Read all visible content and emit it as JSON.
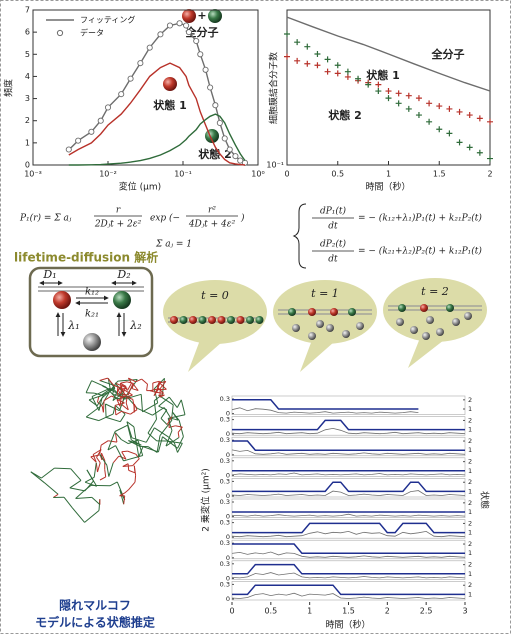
{
  "chart_data": [
    {
      "type": "line",
      "x_scale": "log",
      "xlabel": "変位 (μm)",
      "ylabel": "頻度",
      "xlim": [
        0.001,
        1
      ],
      "xticks": [
        {
          "value": 0.001,
          "label": "10⁻³"
        },
        {
          "value": 0.01,
          "label": "10⁻²"
        },
        {
          "value": 0.1,
          "label": "10⁻¹"
        },
        {
          "value": 1,
          "label": "10⁰"
        }
      ],
      "ylim": [
        0,
        7
      ],
      "yticks": [
        0,
        1,
        2,
        3,
        4,
        5,
        6,
        7
      ],
      "annotations": {
        "total": "全分子",
        "plus": "+"
      },
      "x": [
        0.003,
        0.004,
        0.006,
        0.008,
        0.01,
        0.015,
        0.02,
        0.027,
        0.036,
        0.05,
        0.067,
        0.09,
        0.11,
        0.12,
        0.15,
        0.17,
        0.2,
        0.23,
        0.27,
        0.31,
        0.36,
        0.42,
        0.5,
        0.58,
        0.67
      ],
      "series": [
        {
          "name": "フィッティング",
          "color": "#6d6d6d",
          "marker": "none",
          "values": [
            0.68,
            1.1,
            1.5,
            2.0,
            2.6,
            3.2,
            3.9,
            4.6,
            5.3,
            5.9,
            6.3,
            6.4,
            6.3,
            6.0,
            5.6,
            5.0,
            4.3,
            3.5,
            2.7,
            1.9,
            1.2,
            0.7,
            0.4,
            0.2,
            0.1
          ]
        },
        {
          "name": "データ",
          "color": "#6d6d6d",
          "marker": "circle",
          "values": [
            0.7,
            1.1,
            1.5,
            2.0,
            2.6,
            3.2,
            3.9,
            4.6,
            5.3,
            5.9,
            6.3,
            6.4,
            6.3,
            6.0,
            5.6,
            5.0,
            4.3,
            3.5,
            2.7,
            1.9,
            1.2,
            0.7,
            0.4,
            0.2,
            0.1
          ]
        },
        {
          "name": "状態 1",
          "color": "#b8322a",
          "marker": "none",
          "values": [
            0.45,
            0.7,
            1.0,
            1.4,
            1.8,
            2.3,
            2.8,
            3.4,
            4.0,
            4.4,
            4.6,
            4.4,
            4.0,
            3.6,
            3.0,
            2.4,
            1.8,
            1.3,
            0.8,
            0.5,
            0.25,
            0.1,
            0.05,
            0.02,
            0
          ]
        },
        {
          "name": "状態 2",
          "color": "#2f6b3a",
          "marker": "none",
          "values": [
            0.0,
            0.0,
            0.01,
            0.02,
            0.04,
            0.08,
            0.13,
            0.2,
            0.3,
            0.45,
            0.65,
            0.9,
            1.15,
            1.3,
            1.6,
            1.85,
            2.05,
            2.2,
            2.3,
            2.2,
            1.9,
            1.4,
            0.9,
            0.5,
            0.2
          ]
        }
      ]
    },
    {
      "type": "scatter",
      "y_scale": "log",
      "xlabel": "時間（秒）",
      "ylabel": "細胞膜結合分子数",
      "xlim": [
        0,
        2
      ],
      "xticks": [
        0,
        0.5,
        1,
        1.5,
        2
      ],
      "ylim": [
        0.1,
        1
      ],
      "yticks": [
        {
          "value": 0.1,
          "label": "10⁻¹"
        }
      ],
      "x": [
        0,
        0.1,
        0.2,
        0.3,
        0.4,
        0.5,
        0.6,
        0.7,
        0.8,
        0.9,
        1,
        1.1,
        1.2,
        1.3,
        1.4,
        1.5,
        1.6,
        1.7,
        1.8,
        1.9,
        2
      ],
      "series": [
        {
          "name": "全分子",
          "color": "#6d6d6d",
          "marker": "none",
          "x": [
            0,
            0.25,
            0.5,
            0.75,
            1,
            1.25,
            1.5,
            1.75,
            2
          ],
          "values": [
            0.9,
            0.78,
            0.68,
            0.6,
            0.52,
            0.45,
            0.39,
            0.34,
            0.3
          ]
        },
        {
          "name": "状態 1",
          "color": "#b8322a",
          "marker": "cross",
          "values": [
            0.5,
            0.47,
            0.45,
            0.44,
            0.4,
            0.39,
            0.37,
            0.35,
            0.34,
            0.33,
            0.3,
            0.29,
            0.28,
            0.27,
            0.25,
            0.24,
            0.23,
            0.22,
            0.21,
            0.2,
            0.19
          ]
        },
        {
          "name": "状態 2",
          "color": "#2f6b3a",
          "marker": "cross",
          "values": [
            0.7,
            0.62,
            0.58,
            0.52,
            0.48,
            0.44,
            0.4,
            0.36,
            0.33,
            0.3,
            0.27,
            0.25,
            0.23,
            0.21,
            0.19,
            0.17,
            0.16,
            0.14,
            0.13,
            0.12,
            0.11
          ]
        }
      ]
    },
    {
      "type": "trace",
      "xlabel": "時間（秒）",
      "ylabel": "2 乗変位 (μm²)",
      "y2label": "状態",
      "xlim": [
        0,
        3
      ],
      "xticks": [
        0,
        0.5,
        1,
        1.5,
        2,
        2.5,
        3
      ],
      "ylim": [
        0,
        0.3
      ],
      "yticks": [
        0,
        0.3
      ],
      "y2lim": [
        0.5,
        2.2
      ],
      "y2ticks": [
        1,
        2
      ],
      "displacement_color": "#707070",
      "state_color": "#1f2f8f",
      "x": [
        0,
        0.1,
        0.2,
        0.3,
        0.4,
        0.5,
        0.6,
        0.7,
        0.8,
        0.9,
        1,
        1.1,
        1.2,
        1.3,
        1.4,
        1.5,
        1.6,
        1.7,
        1.8,
        1.9,
        2,
        2.1,
        2.2,
        2.3,
        2.4,
        2.5,
        2.6,
        2.7,
        2.8,
        2.9,
        3
      ],
      "panels": [
        {
          "displacement": [
            0.08,
            0.12,
            0.06,
            0.1,
            0.09,
            0.07,
            0.02,
            0.01,
            0.03,
            0.02,
            0.01,
            0.02,
            0.04,
            0.01,
            0.02,
            0.03,
            0.01,
            0.02,
            0.01,
            0.03,
            0.02,
            0.01,
            0.02,
            0.04,
            0.02,
            null,
            null,
            null,
            null,
            null,
            null
          ],
          "state": [
            2,
            2,
            2,
            2,
            2,
            2,
            1,
            1,
            1,
            1,
            1,
            1,
            1,
            1,
            1,
            1,
            1,
            1,
            1,
            1,
            1,
            1,
            1,
            1,
            1,
            null,
            null,
            null,
            null,
            null,
            null
          ]
        },
        {
          "displacement": [
            0.02,
            0.01,
            0.03,
            0.02,
            0.01,
            0.02,
            0.04,
            0.01,
            0.02,
            0.03,
            0.01,
            0.02,
            0.09,
            0.12,
            0.08,
            0.02,
            0.01,
            0.03,
            0.02,
            0.01,
            0.02,
            0.04,
            0.01,
            0.02,
            0.03,
            0.01,
            0.02,
            0.01,
            0.03,
            0.02,
            0.01
          ],
          "state": [
            1,
            1,
            1,
            1,
            1,
            1,
            1,
            1,
            1,
            1,
            1,
            1,
            2,
            2,
            2,
            1,
            1,
            1,
            1,
            1,
            1,
            1,
            1,
            1,
            1,
            1,
            1,
            1,
            1,
            1,
            1
          ]
        },
        {
          "displacement": [
            0.1,
            0.07,
            0.09,
            0.02,
            0.01,
            0.02,
            0.04,
            0.01,
            0.02,
            0.03,
            0.01,
            0.02,
            0.01,
            0.03,
            0.02,
            0.01,
            0.02,
            0.04,
            0.02,
            0.01,
            0.03,
            0.02,
            0.01,
            0.02,
            0.03,
            0.01,
            0.02,
            0.01,
            0.03,
            0.02,
            0.01
          ],
          "state": [
            2,
            2,
            2,
            1,
            1,
            1,
            1,
            1,
            1,
            1,
            1,
            1,
            1,
            1,
            1,
            1,
            1,
            1,
            1,
            1,
            1,
            1,
            1,
            1,
            1,
            1,
            1,
            1,
            1,
            1,
            1
          ]
        },
        {
          "displacement": [
            0.01,
            0.03,
            0.02,
            0.01,
            0.02,
            0.01,
            0.03,
            0.02,
            0.05,
            0.01,
            0.02,
            0.03,
            0.01,
            0.02,
            0.01,
            0.02,
            0.03,
            0.01,
            0.02,
            0.04,
            0.01,
            0.02,
            0.01,
            0.03,
            0.02,
            0.01,
            0.02,
            0.03,
            0.01,
            0.02,
            0.01
          ],
          "state": [
            1,
            1,
            1,
            1,
            1,
            1,
            1,
            1,
            1,
            1,
            1,
            1,
            1,
            1,
            1,
            1,
            1,
            1,
            1,
            1,
            1,
            1,
            1,
            1,
            1,
            1,
            1,
            1,
            1,
            1,
            1
          ]
        },
        {
          "displacement": [
            0.02,
            0.01,
            0.03,
            0.02,
            0.01,
            0.02,
            0.04,
            0.01,
            0.02,
            0.03,
            0.01,
            0.02,
            0.01,
            0.1,
            0.08,
            0.01,
            0.02,
            0.04,
            0.02,
            0.01,
            0.03,
            0.02,
            0.01,
            0.09,
            0.11,
            0.01,
            0.02,
            0.01,
            0.03,
            0.02,
            0.01
          ],
          "state": [
            1,
            1,
            1,
            1,
            1,
            1,
            1,
            1,
            1,
            1,
            1,
            1,
            1,
            2,
            2,
            1,
            1,
            1,
            1,
            1,
            1,
            1,
            1,
            2,
            2,
            1,
            1,
            1,
            1,
            1,
            1
          ]
        },
        {
          "displacement": [
            0.02,
            0.02,
            0.01,
            0.03,
            0.01,
            0.02,
            0.04,
            0.02,
            0.01,
            0.02,
            0.03,
            0.01,
            0.02,
            0.01,
            0.02,
            0.05,
            0.01,
            0.02,
            0.01,
            0.03,
            0.02,
            0.01,
            0.02,
            0.01,
            0.03,
            0.02,
            0.01,
            0.02,
            0.01,
            0.02,
            0.01
          ],
          "state": [
            1,
            1,
            1,
            1,
            1,
            1,
            1,
            1,
            1,
            1,
            1,
            1,
            1,
            1,
            1,
            1,
            1,
            1,
            1,
            1,
            1,
            1,
            1,
            1,
            1,
            1,
            1,
            1,
            1,
            1,
            1
          ]
        },
        {
          "displacement": [
            0.02,
            0.01,
            0.03,
            0.02,
            0.01,
            0.02,
            0.04,
            0.01,
            0.02,
            0.03,
            0.08,
            0.11,
            0.07,
            0.1,
            0.09,
            0.12,
            0.06,
            0.1,
            0.08,
            0.09,
            0.03,
            0.02,
            0.1,
            0.07,
            0.09,
            0.12,
            0.02,
            0.01,
            0.03,
            0.02,
            0.01
          ],
          "state": [
            1,
            1,
            1,
            1,
            1,
            1,
            1,
            1,
            1,
            1,
            2,
            2,
            2,
            2,
            2,
            2,
            2,
            2,
            2,
            2,
            1,
            1,
            2,
            2,
            2,
            2,
            1,
            1,
            1,
            1,
            1
          ]
        },
        {
          "displacement": [
            0.09,
            0.11,
            0.07,
            0.1,
            0.08,
            0.12,
            0.06,
            0.1,
            0.09,
            0.03,
            0.01,
            0.02,
            0.01,
            0.03,
            0.02,
            0.01,
            0.02,
            0.04,
            0.02,
            0.01,
            0.03,
            0.02,
            0.01,
            0.02,
            0.03,
            0.01,
            0.02,
            0.01,
            0.03,
            0.02,
            0.01
          ],
          "state": [
            2,
            2,
            2,
            2,
            2,
            2,
            2,
            2,
            2,
            1,
            1,
            1,
            1,
            1,
            1,
            1,
            1,
            1,
            1,
            1,
            1,
            1,
            1,
            1,
            1,
            1,
            1,
            1,
            1,
            1,
            1
          ]
        },
        {
          "displacement": [
            0.02,
            0.01,
            0.03,
            0.1,
            0.08,
            0.12,
            0.07,
            0.09,
            0.11,
            0.03,
            0.01,
            0.02,
            0.01,
            0.03,
            0.02,
            0.01,
            0.02,
            0.04,
            0.02,
            0.01,
            0.03,
            0.02,
            0.01,
            0.02,
            0.03,
            0.01,
            0.02,
            0.01,
            0.03,
            0.02,
            0.01
          ],
          "state": [
            1,
            1,
            1,
            2,
            2,
            2,
            2,
            2,
            2,
            1,
            1,
            1,
            1,
            1,
            1,
            1,
            1,
            1,
            1,
            1,
            1,
            1,
            1,
            1,
            1,
            1,
            1,
            1,
            1,
            1,
            1
          ]
        },
        {
          "displacement": [
            0.02,
            0.01,
            0.03,
            0.09,
            0.11,
            0.07,
            0.1,
            0.08,
            0.12,
            0.06,
            0.1,
            0.09,
            0.08,
            0.11,
            0.02,
            0.01,
            0.02,
            0.04,
            0.02,
            0.01,
            0.03,
            0.02,
            0.01,
            0.02,
            0.03,
            0.01,
            0.02,
            0.01,
            0.03,
            0.02,
            0.01
          ],
          "state": [
            1,
            1,
            1,
            2,
            2,
            2,
            2,
            2,
            2,
            2,
            2,
            2,
            2,
            2,
            1,
            1,
            1,
            1,
            1,
            1,
            1,
            1,
            1,
            1,
            1,
            1,
            1,
            1,
            1,
            1,
            1
          ]
        }
      ]
    }
  ],
  "equations": {
    "p1_lhs": "P₁(r) = Σ aⱼ",
    "p1_num": "r",
    "p1_den": "2Dⱼt + 2ε²",
    "p1_exp": "exp (−",
    "p1_num2": "r²",
    "p1_den2": "4Dⱼt + 4ε²",
    "p1_close": ")",
    "sum": "Σ aⱼ = 1",
    "dp1_num": "dP₁(t)",
    "dt": "dt",
    "dp1_rhs": "= − (k₁₂+λ₁)P₁(t) + k₂₁P₂(t)",
    "dp2_num": "dP₂(t)",
    "dp2_rhs": "= − (k₂₁+λ₂)P₂(t) + k₁₂P₁(t)"
  },
  "analysis_label": "lifetime-diffusion 解析",
  "model": {
    "d1": "D₁",
    "d2": "D₂",
    "k12": "k₁₂",
    "k21": "k₂₁",
    "lambda1": "λ₁",
    "lambda2": "λ₂"
  },
  "bubbles": [
    "t = 0",
    "t = 1",
    "t = 2"
  ],
  "trajectory_caption": [
    "隠れマルコフ",
    "モデルによる状態推定"
  ]
}
